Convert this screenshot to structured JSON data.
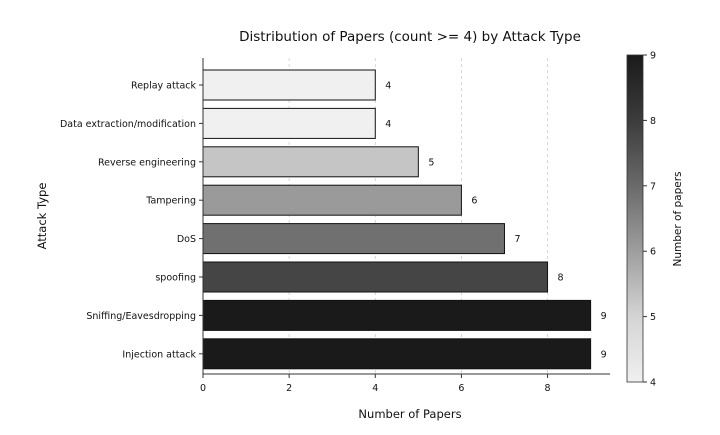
{
  "chart_data": {
    "type": "bar",
    "orientation": "horizontal",
    "title": "Distribution of Papers (count >= 4) by Attack Type",
    "xlabel": "Number of Papers",
    "ylabel": "Attack Type",
    "categories": [
      "Replay attack",
      "Data extraction/modification",
      "Reverse engineering",
      "Tampering",
      "DoS",
      "spoofing",
      "Sniffing/Eavesdropping",
      "Injection attack"
    ],
    "values": [
      4,
      4,
      5,
      6,
      7,
      8,
      9,
      9
    ],
    "data_labels": [
      "4",
      "4",
      "5",
      "6",
      "7",
      "8",
      "9",
      "9"
    ],
    "x_ticks": [
      0,
      2,
      4,
      6,
      8
    ],
    "xlim": [
      0,
      9.45
    ],
    "grid": "vertical dashed",
    "colorbar": {
      "label": "Number of papers",
      "range": [
        4,
        9
      ],
      "ticks": [
        4,
        5,
        6,
        7,
        8,
        9
      ],
      "colormap": "Greys"
    },
    "colors": {
      "cmap_low": "#f0f0f0",
      "cmap_high": "#1a1a1a",
      "bar_edge": "#111111",
      "axis": "#333333",
      "grid": "#cccccc"
    }
  }
}
